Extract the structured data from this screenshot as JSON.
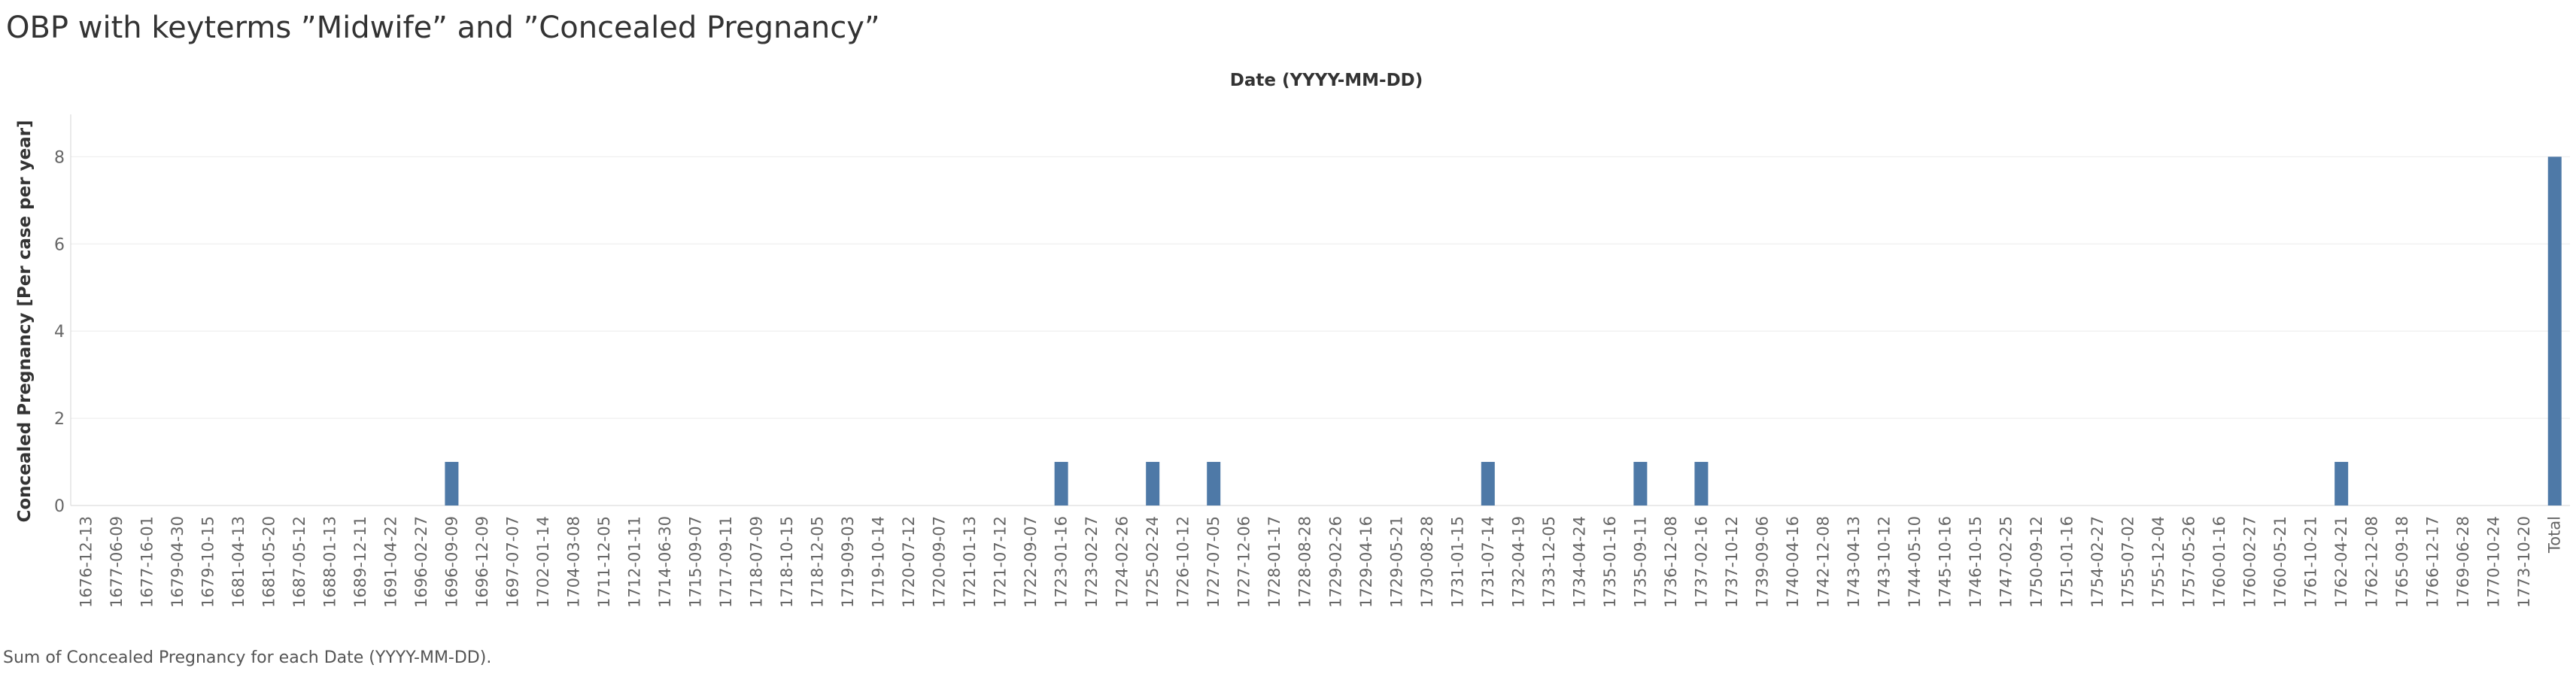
{
  "title": "OBP with keyterms ”Midwife” and ”Concealed Pregnancy”",
  "caption": "Sum of Concealed Pregnancy for each Date (YYYY-MM-DD).",
  "colors": {
    "bar": "#4e79a7",
    "grid": "#ebebeb",
    "axis": "#d4d4d4"
  },
  "chart_data": {
    "type": "bar",
    "title": "OBP with keyterms ”Midwife” and ”Concealed Pregnancy”",
    "xlabel": "Date (YYYY-MM-DD)",
    "ylabel": "Concealed Pregnancy [Per case per year]",
    "ylim": [
      0,
      8.8
    ],
    "yticks": [
      0,
      2,
      4,
      6,
      8
    ],
    "grid": true,
    "categories": [
      "1676-12-13",
      "1677-06-09",
      "1677-16-01",
      "1679-04-30",
      "1679-10-15",
      "1681-04-13",
      "1681-05-20",
      "1687-05-12",
      "1688-01-13",
      "1689-12-11",
      "1691-04-22",
      "1696-02-27",
      "1696-09-09",
      "1696-12-09",
      "1697-07-07",
      "1702-01-14",
      "1704-03-08",
      "1711-12-05",
      "1712-01-11",
      "1714-06-30",
      "1715-09-07",
      "1717-09-11",
      "1718-07-09",
      "1718-10-15",
      "1718-12-05",
      "1719-09-03",
      "1719-10-14",
      "1720-07-12",
      "1720-09-07",
      "1721-01-13",
      "1721-07-12",
      "1722-09-07",
      "1723-01-16",
      "1723-02-27",
      "1724-02-26",
      "1725-02-24",
      "1726-10-12",
      "1727-07-05",
      "1727-12-06",
      "1728-01-17",
      "1728-08-28",
      "1729-02-26",
      "1729-04-16",
      "1729-05-21",
      "1730-08-28",
      "1731-01-15",
      "1731-07-14",
      "1732-04-19",
      "1733-12-05",
      "1734-04-24",
      "1735-01-16",
      "1735-09-11",
      "1736-12-08",
      "1737-02-16",
      "1737-10-12",
      "1739-09-06",
      "1740-04-16",
      "1742-12-08",
      "1743-04-13",
      "1743-10-12",
      "1744-05-10",
      "1745-10-16",
      "1746-10-15",
      "1747-02-25",
      "1750-09-12",
      "1751-01-16",
      "1754-02-27",
      "1755-07-02",
      "1755-12-04",
      "1757-05-26",
      "1760-01-16",
      "1760-02-27",
      "1760-05-21",
      "1761-10-21",
      "1762-04-21",
      "1762-12-08",
      "1765-09-18",
      "1766-12-17",
      "1769-06-28",
      "1770-10-24",
      "1773-10-20",
      "Total"
    ],
    "values": [
      0,
      0,
      0,
      0,
      0,
      0,
      0,
      0,
      0,
      0,
      0,
      0,
      1,
      0,
      0,
      0,
      0,
      0,
      0,
      0,
      0,
      0,
      0,
      0,
      0,
      0,
      0,
      0,
      0,
      0,
      0,
      0,
      1,
      0,
      0,
      1,
      0,
      1,
      0,
      0,
      0,
      0,
      0,
      0,
      0,
      0,
      1,
      0,
      0,
      0,
      0,
      1,
      0,
      1,
      0,
      0,
      0,
      0,
      0,
      0,
      0,
      0,
      0,
      0,
      0,
      0,
      0,
      0,
      0,
      0,
      0,
      0,
      0,
      0,
      1,
      0,
      0,
      0,
      0,
      0,
      0,
      8
    ]
  }
}
